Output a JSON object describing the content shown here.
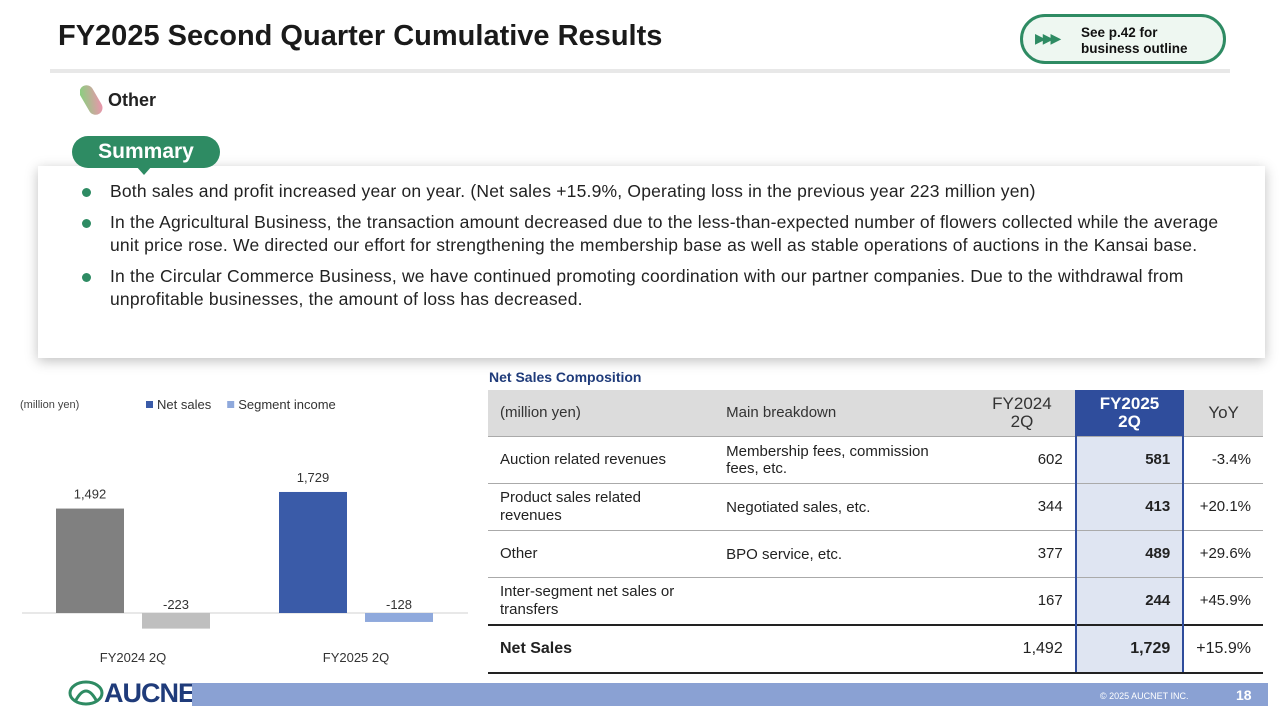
{
  "header": {
    "title": "FY2025 Second Quarter Cumulative Results",
    "link": "See p.42 for business outline",
    "segment": "Other"
  },
  "summary": {
    "label": "Summary",
    "bullets": [
      "Both sales and profit increased year on year. (Net sales +15.9%, Operating loss in the previous year 223 million yen)",
      "In the Agricultural Business, the transaction amount decreased due to the less-than-expected number of flowers collected while the average unit price rose. We directed our effort for strengthening the membership base as well as stable operations of auctions in the Kansai base.",
      "In the Circular Commerce Business, we have continued promoting coordination with our partner companies. Due to the withdrawal from unprofitable businesses, the amount of loss has decreased."
    ]
  },
  "chart_data": {
    "type": "bar",
    "unit_label": "(million yen)",
    "categories": [
      "FY2024 2Q",
      "FY2025 2Q"
    ],
    "series": [
      {
        "name": "Net sales",
        "color": "#3a5ba8",
        "category_colors": [
          "#808080",
          "#3a5ba8"
        ],
        "values": [
          1492,
          1729
        ],
        "value_labels": [
          "1,492",
          "1,729"
        ]
      },
      {
        "name": "Segment income",
        "color": "#8fa9dc",
        "category_colors": [
          "#bfbfbf",
          "#8fa9dc"
        ],
        "values": [
          -223,
          -128
        ]
      }
    ],
    "ylim": [
      -300,
      2200
    ]
  },
  "table": {
    "title": "Net Sales Composition",
    "columns": [
      "(million yen)",
      "Main breakdown",
      "FY2024 2Q",
      "FY2025 2Q",
      "YoY"
    ],
    "rows": [
      [
        "Auction related revenues",
        "Membership fees, commission fees, etc.",
        "602",
        "581",
        "-3.4%"
      ],
      [
        "Product sales related revenues",
        "Negotiated sales, etc.",
        "344",
        "413",
        "+20.1%"
      ],
      [
        "Other",
        "BPO service, etc.",
        "377",
        "489",
        "+29.6%"
      ],
      [
        "Inter-segment net sales or transfers",
        null,
        "167",
        "244",
        "+45.9%"
      ]
    ],
    "total": [
      "Net Sales",
      null,
      "1,492",
      "1,729",
      "+15.9%"
    ]
  },
  "footer": {
    "logo": "AUCNET",
    "copyright": "© 2025 AUCNET INC.",
    "page": "18"
  }
}
